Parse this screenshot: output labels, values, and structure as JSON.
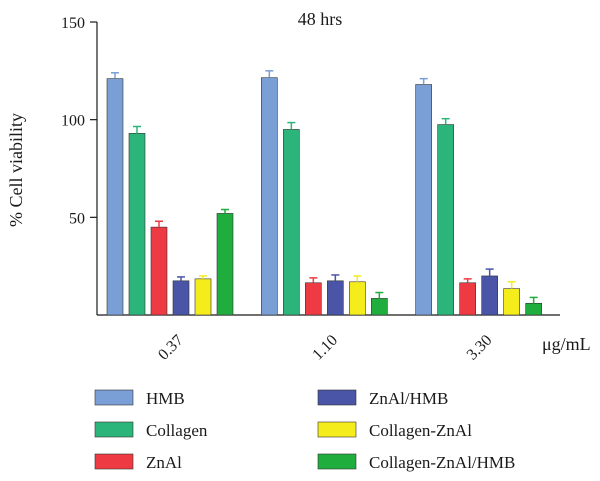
{
  "chart_data": {
    "type": "bar",
    "title": "48 hrs",
    "ylabel": "% Cell viability",
    "xlabel": "μg/mL",
    "ylim": [
      0,
      150
    ],
    "yticks": [
      50,
      100,
      150
    ],
    "categories": [
      "0.37",
      "1.10",
      "3.30"
    ],
    "series": [
      {
        "name": "HMB",
        "color": "#7a9fd6",
        "values": [
          121,
          121.5,
          118
        ],
        "errors": [
          3,
          3.5,
          3
        ]
      },
      {
        "name": "Collagen",
        "color": "#2bb57a",
        "values": [
          93,
          95,
          97.5
        ],
        "errors": [
          3.5,
          3.5,
          3
        ]
      },
      {
        "name": "ZnAl",
        "color": "#ee3a42",
        "values": [
          45,
          16.5,
          16.5
        ],
        "errors": [
          3,
          2.5,
          2
        ]
      },
      {
        "name": "ZnAl/HMB",
        "color": "#4a55a8",
        "values": [
          17.5,
          17.5,
          20
        ],
        "errors": [
          2,
          3,
          3.5
        ]
      },
      {
        "name": "Collagen-ZnAl",
        "color": "#f5ec1b",
        "values": [
          18.5,
          17,
          13.5
        ],
        "errors": [
          1.5,
          3,
          3.5
        ]
      },
      {
        "name": "Collagen-ZnAl/HMB",
        "color": "#1fae3e",
        "values": [
          52,
          8.5,
          6
        ],
        "errors": [
          2,
          3,
          3
        ]
      }
    ],
    "grid": false,
    "legend_position": "bottom"
  }
}
